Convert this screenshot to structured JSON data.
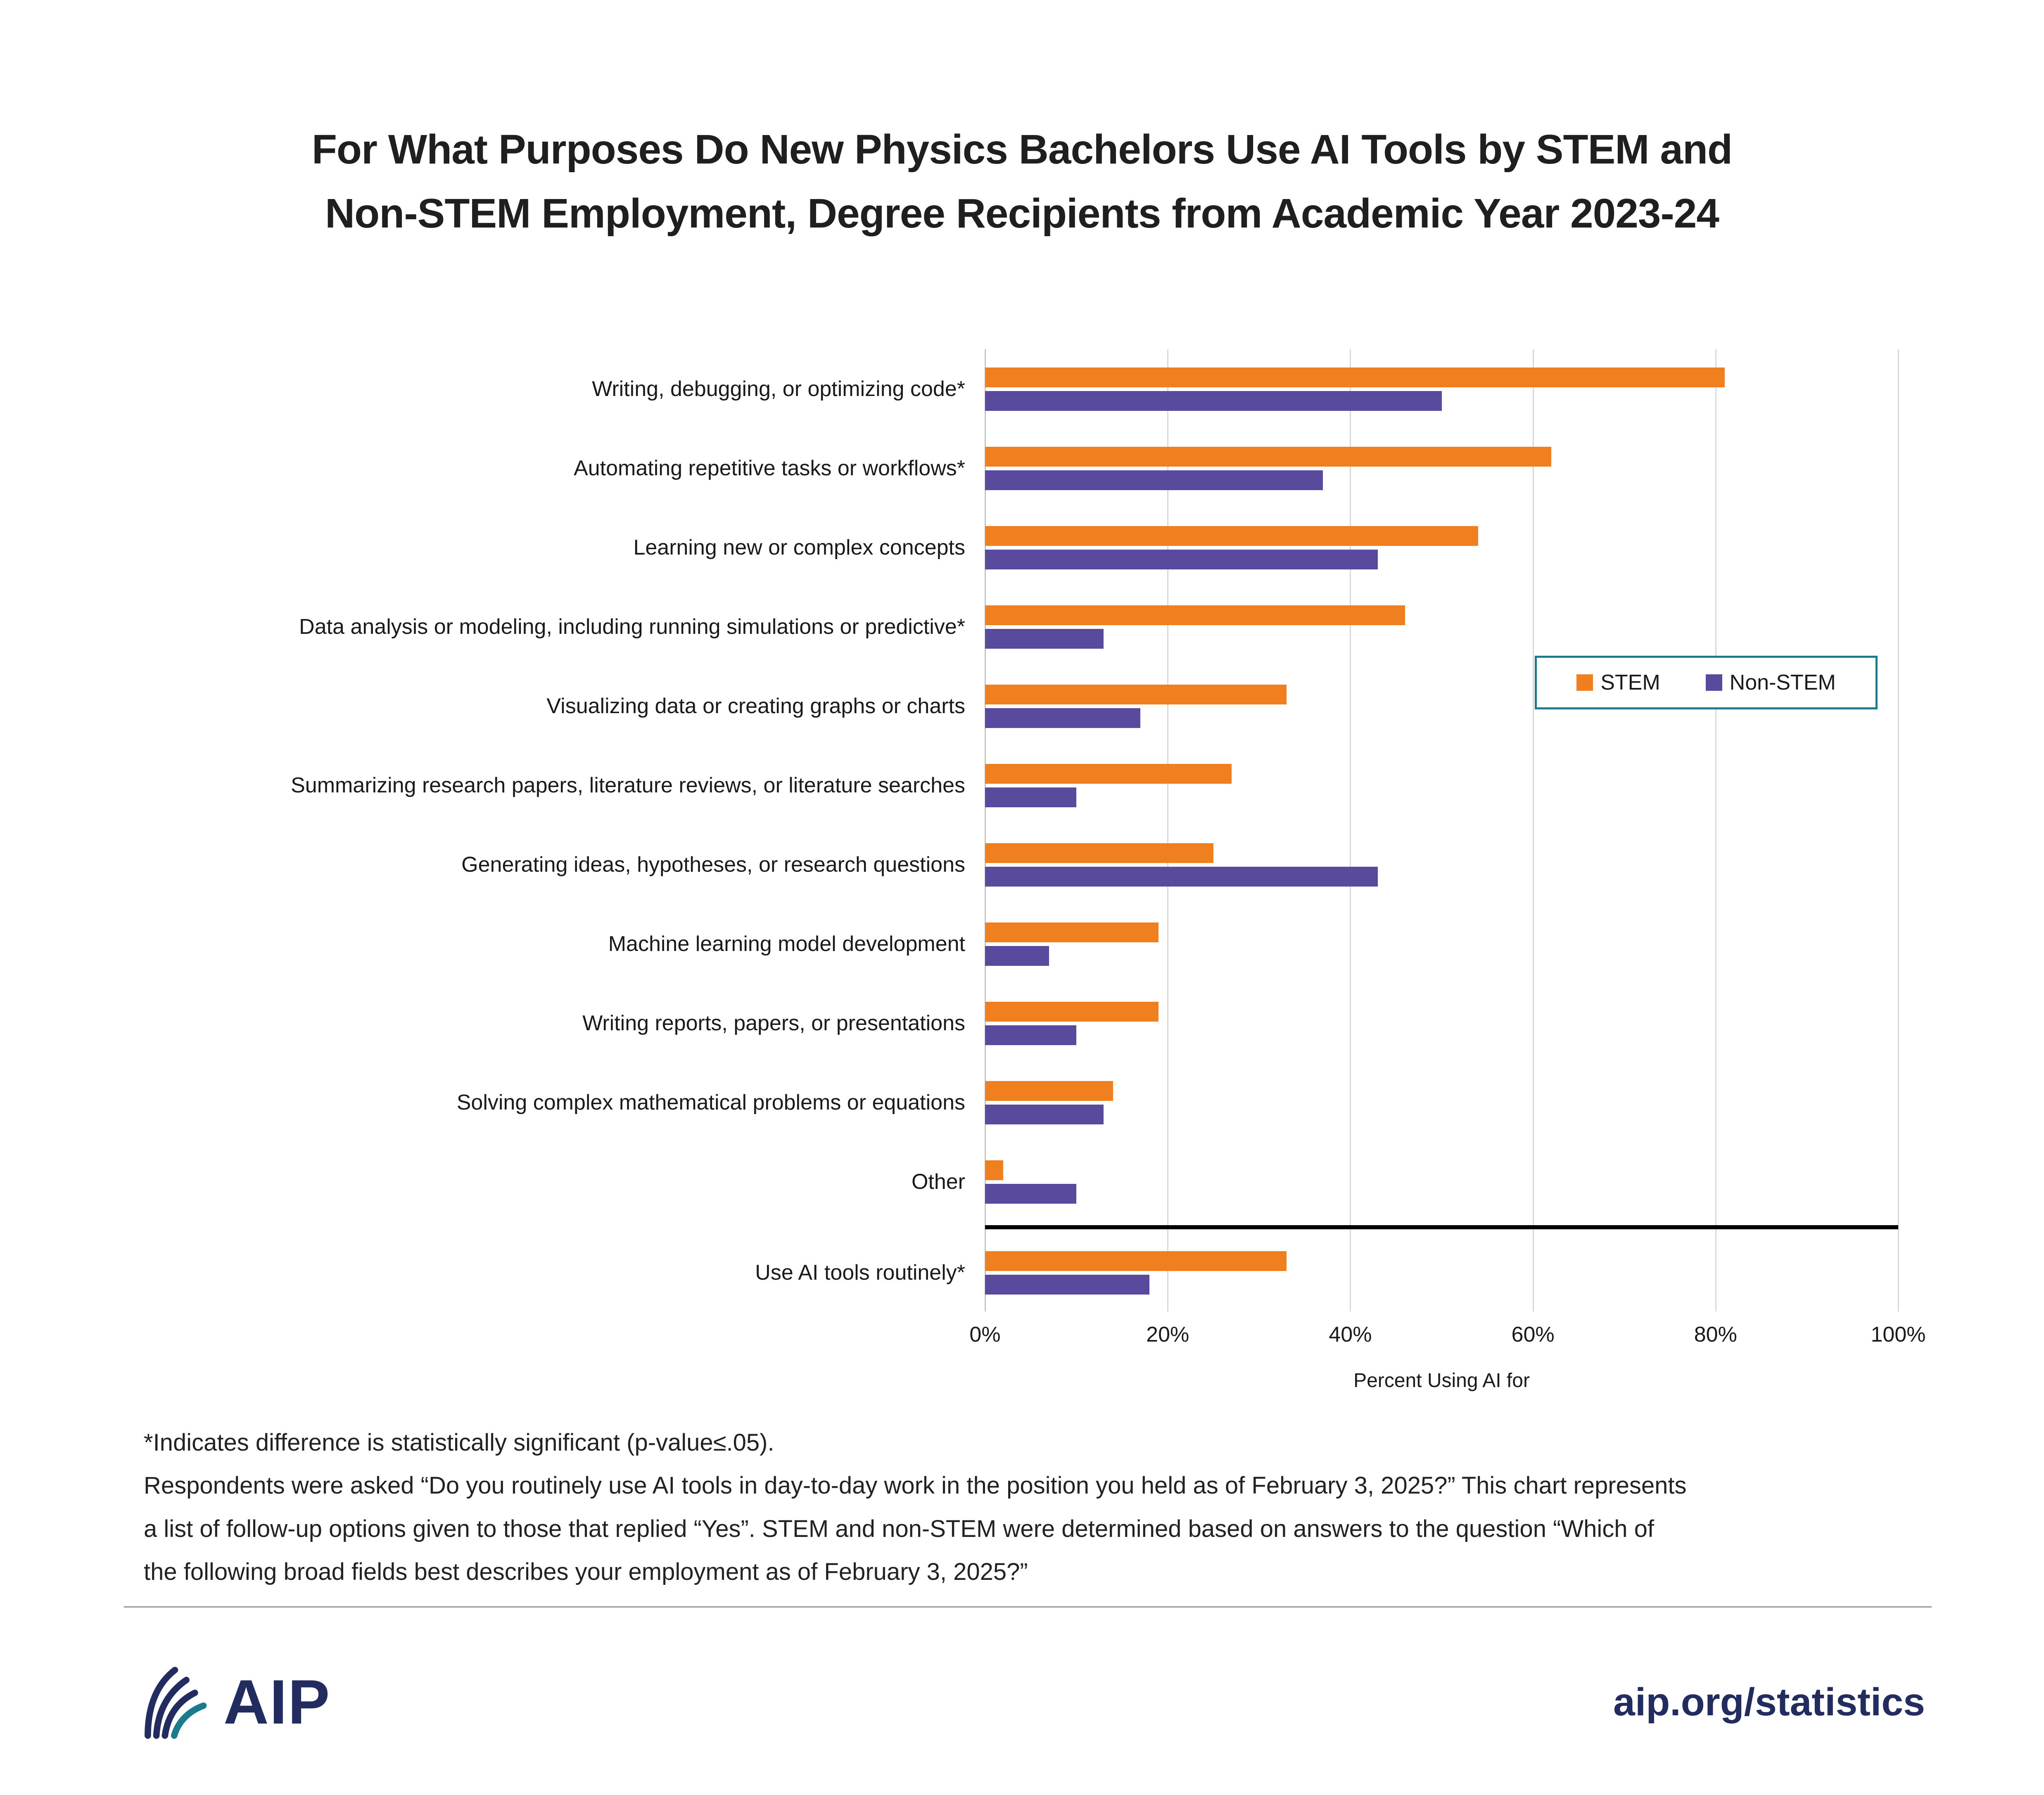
{
  "title": {
    "lines": [
      "For What Purposes Do New Physics Bachelors Use AI Tools by STEM and",
      "Non-STEM Employment, Degree Recipients from Academic Year 2023-24"
    ]
  },
  "chart_data": {
    "type": "bar",
    "orientation": "horizontal",
    "categories": [
      "Writing, debugging, or optimizing code*",
      "Automating repetitive tasks or workflows*",
      "Learning new or complex concepts",
      "Data analysis or modeling, including running simulations or predictive*",
      "Visualizing data or creating graphs or charts",
      "Summarizing research papers, literature reviews, or literature searches",
      "Generating ideas, hypotheses, or research questions",
      "Machine learning model development",
      "Writing reports, papers, or presentations",
      "Solving complex mathematical problems or equations",
      "Other",
      "Use AI tools routinely*"
    ],
    "series": [
      {
        "name": "STEM",
        "color": "#F0801F",
        "values": [
          81,
          62,
          54,
          46,
          33,
          27,
          25,
          19,
          19,
          14,
          2,
          33
        ]
      },
      {
        "name": "Non-STEM",
        "color": "#5A4A9E",
        "values": [
          50,
          37,
          43,
          13,
          17,
          10,
          43,
          7,
          10,
          13,
          10,
          18
        ]
      }
    ],
    "separator_before_index": 11,
    "xlabel": "Percent Using AI for",
    "xlim": [
      0,
      100
    ],
    "xtick_values": [
      0,
      20,
      40,
      60,
      80,
      100
    ],
    "xtick_labels": [
      "0%",
      "20%",
      "40%",
      "60%",
      "80%",
      "100%"
    ],
    "legend_position": "middle-right",
    "legend_border_color": "#1B7A8C",
    "grid": "vertical"
  },
  "footnotes": {
    "lines": [
      "*Indicates difference is statistically significant (p-value≤.05).",
      "Respondents were asked “Do you routinely use AI tools in day-to-day work in the position you held as of February 3, 2025?” This chart represents",
      "a list of follow-up options given to those that replied “Yes”. STEM and non-STEM were determined based on answers to the question “Which of",
      "the following broad fields best describes your employment as of February 3, 2025?”"
    ]
  },
  "footer": {
    "logo_text": "AIP",
    "site": "aip.org/statistics"
  },
  "colors": {
    "stem": "#F0801F",
    "non_stem": "#5A4A9E",
    "navy": "#232C5F",
    "legend_border": "#1B7A8C",
    "gridline": "#D8D8D8",
    "separator_line": "#000000"
  }
}
